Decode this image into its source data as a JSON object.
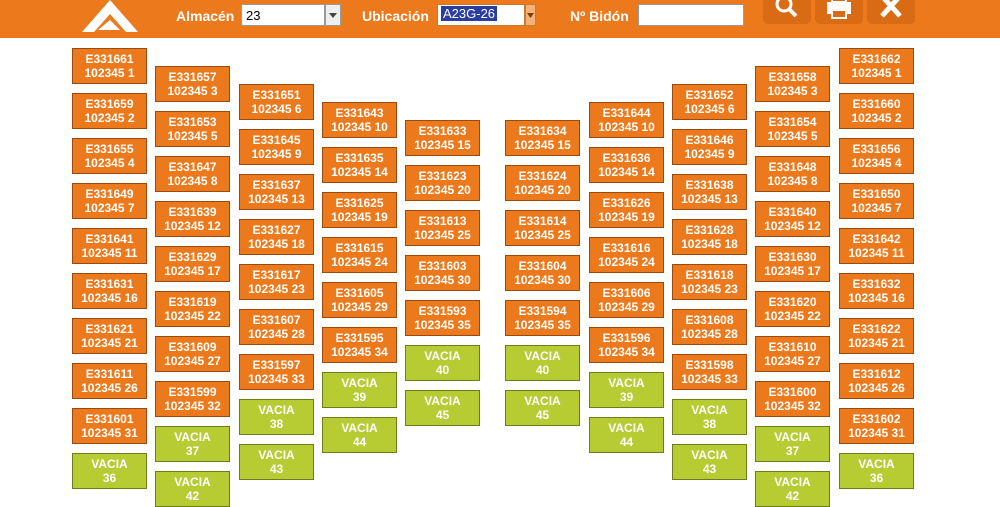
{
  "header": {
    "almacen_label": "Almacén",
    "almacen_value": "23",
    "ubicacion_label": "Ubicación",
    "ubicacion_value": "A23G-26",
    "bidon_label": "Nº Bidón",
    "bidon_value": ""
  },
  "colors": {
    "brand": "#ec7a1c",
    "occupied": "#ec7a1c",
    "empty": "#b6cc32"
  },
  "toolbar_icons": [
    "search-icon",
    "print-icon",
    "close-icon"
  ],
  "columns": [
    [
      {
        "c": "E331661",
        "n": "102345 1"
      },
      {
        "c": "E331659",
        "n": "102345 2"
      },
      {
        "c": "E331655",
        "n": "102345 4"
      },
      {
        "c": "E331649",
        "n": "102345 7"
      },
      {
        "c": "E331641",
        "n": "102345 11"
      },
      {
        "c": "E331631",
        "n": "102345 16"
      },
      {
        "c": "E331621",
        "n": "102345 21"
      },
      {
        "c": "E331611",
        "n": "102345 26"
      },
      {
        "c": "E331601",
        "n": "102345 31"
      },
      {
        "c": "VACIA",
        "n": "36"
      }
    ],
    [
      {
        "c": "E331657",
        "n": "102345 3"
      },
      {
        "c": "E331653",
        "n": "102345 5"
      },
      {
        "c": "E331647",
        "n": "102345 8"
      },
      {
        "c": "E331639",
        "n": "102345 12"
      },
      {
        "c": "E331629",
        "n": "102345 17"
      },
      {
        "c": "E331619",
        "n": "102345 22"
      },
      {
        "c": "E331609",
        "n": "102345 27"
      },
      {
        "c": "E331599",
        "n": "102345 32"
      },
      {
        "c": "VACIA",
        "n": "37"
      },
      {
        "c": "VACIA",
        "n": "42"
      }
    ],
    [
      {
        "c": "E331651",
        "n": "102345 6"
      },
      {
        "c": "E331645",
        "n": "102345 9"
      },
      {
        "c": "E331637",
        "n": "102345 13"
      },
      {
        "c": "E331627",
        "n": "102345 18"
      },
      {
        "c": "E331617",
        "n": "102345 23"
      },
      {
        "c": "E331607",
        "n": "102345 28"
      },
      {
        "c": "E331597",
        "n": "102345 33"
      },
      {
        "c": "VACIA",
        "n": "38"
      },
      {
        "c": "VACIA",
        "n": "43"
      }
    ],
    [
      {
        "c": "E331643",
        "n": "102345 10"
      },
      {
        "c": "E331635",
        "n": "102345 14"
      },
      {
        "c": "E331625",
        "n": "102345 19"
      },
      {
        "c": "E331615",
        "n": "102345 24"
      },
      {
        "c": "E331605",
        "n": "102345 29"
      },
      {
        "c": "E331595",
        "n": "102345 34"
      },
      {
        "c": "VACIA",
        "n": "39"
      },
      {
        "c": "VACIA",
        "n": "44"
      }
    ],
    [
      {
        "c": "E331633",
        "n": "102345 15"
      },
      {
        "c": "E331623",
        "n": "102345 20"
      },
      {
        "c": "E331613",
        "n": "102345 25"
      },
      {
        "c": "E331603",
        "n": "102345 30"
      },
      {
        "c": "E331593",
        "n": "102345 35"
      },
      {
        "c": "VACIA",
        "n": "40"
      },
      {
        "c": "VACIA",
        "n": "45"
      }
    ],
    [
      {
        "c": "E331634",
        "n": "102345 15"
      },
      {
        "c": "E331624",
        "n": "102345 20"
      },
      {
        "c": "E331614",
        "n": "102345 25"
      },
      {
        "c": "E331604",
        "n": "102345 30"
      },
      {
        "c": "E331594",
        "n": "102345 35"
      },
      {
        "c": "VACIA",
        "n": "40"
      },
      {
        "c": "VACIA",
        "n": "45"
      }
    ],
    [
      {
        "c": "E331644",
        "n": "102345 10"
      },
      {
        "c": "E331636",
        "n": "102345 14"
      },
      {
        "c": "E331626",
        "n": "102345 19"
      },
      {
        "c": "E331616",
        "n": "102345 24"
      },
      {
        "c": "E331606",
        "n": "102345 29"
      },
      {
        "c": "E331596",
        "n": "102345 34"
      },
      {
        "c": "VACIA",
        "n": "39"
      },
      {
        "c": "VACIA",
        "n": "44"
      }
    ],
    [
      {
        "c": "E331652",
        "n": "102345 6"
      },
      {
        "c": "E331646",
        "n": "102345 9"
      },
      {
        "c": "E331638",
        "n": "102345 13"
      },
      {
        "c": "E331628",
        "n": "102345 18"
      },
      {
        "c": "E331618",
        "n": "102345 23"
      },
      {
        "c": "E331608",
        "n": "102345 28"
      },
      {
        "c": "E331598",
        "n": "102345 33"
      },
      {
        "c": "VACIA",
        "n": "38"
      },
      {
        "c": "VACIA",
        "n": "43"
      }
    ],
    [
      {
        "c": "E331658",
        "n": "102345 3"
      },
      {
        "c": "E331654",
        "n": "102345 5"
      },
      {
        "c": "E331648",
        "n": "102345 8"
      },
      {
        "c": "E331640",
        "n": "102345 12"
      },
      {
        "c": "E331630",
        "n": "102345 17"
      },
      {
        "c": "E331620",
        "n": "102345 22"
      },
      {
        "c": "E331610",
        "n": "102345 27"
      },
      {
        "c": "E331600",
        "n": "102345 32"
      },
      {
        "c": "VACIA",
        "n": "37"
      },
      {
        "c": "VACIA",
        "n": "42"
      }
    ],
    [
      {
        "c": "E331662",
        "n": "102345 1"
      },
      {
        "c": "E331660",
        "n": "102345 2"
      },
      {
        "c": "E331656",
        "n": "102345 4"
      },
      {
        "c": "E331650",
        "n": "102345 7"
      },
      {
        "c": "E331642",
        "n": "102345 11"
      },
      {
        "c": "E331632",
        "n": "102345 16"
      },
      {
        "c": "E331622",
        "n": "102345 21"
      },
      {
        "c": "E331612",
        "n": "102345 26"
      },
      {
        "c": "E331602",
        "n": "102345 31"
      },
      {
        "c": "VACIA",
        "n": "36"
      }
    ]
  ]
}
